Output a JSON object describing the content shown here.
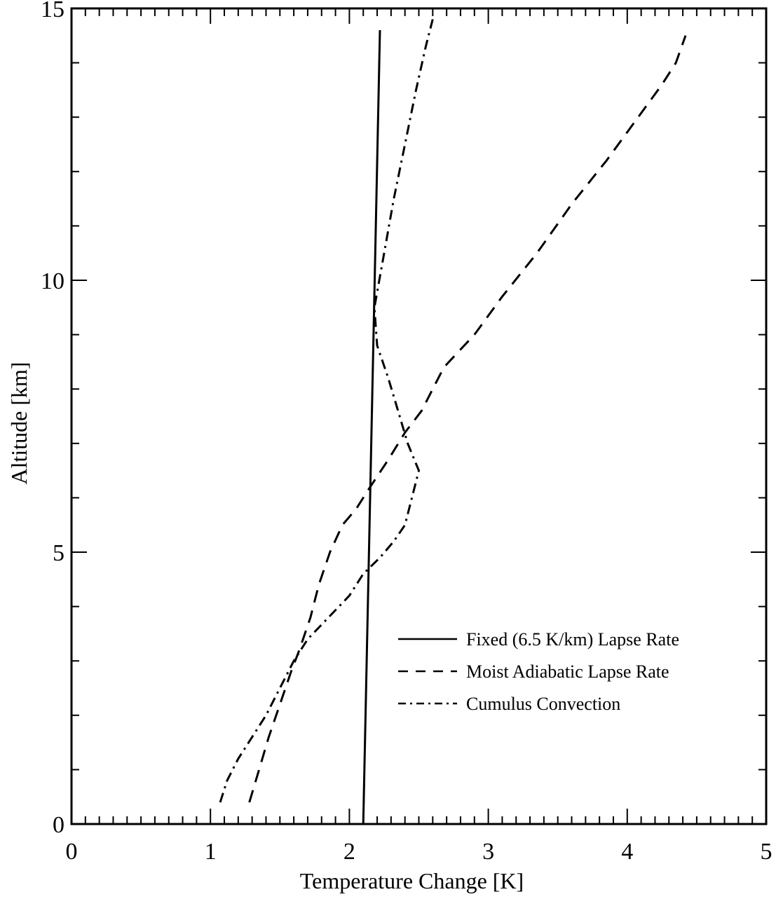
{
  "chart_data": {
    "type": "line",
    "title": "",
    "xlabel": "Temperature Change [K]",
    "ylabel": "Altitude [km]",
    "xlim": [
      0,
      5
    ],
    "ylim": [
      0,
      15
    ],
    "x_ticks": [
      "0",
      "1",
      "2",
      "3",
      "4",
      "5"
    ],
    "y_ticks": [
      "0",
      "5",
      "10",
      "15"
    ],
    "grid": false,
    "legend_position": "bottom-right",
    "series": [
      {
        "name": "Fixed (6.5 K/km) Lapse Rate",
        "style": "solid",
        "points": [
          [
            2.1,
            0
          ],
          [
            2.22,
            14.6
          ]
        ]
      },
      {
        "name": "Moist Adiabatic Lapse Rate",
        "style": "dashed",
        "points": [
          [
            1.28,
            0.4
          ],
          [
            1.35,
            1.0
          ],
          [
            1.42,
            1.6
          ],
          [
            1.5,
            2.2
          ],
          [
            1.58,
            2.8
          ],
          [
            1.64,
            3.2
          ],
          [
            1.72,
            3.8
          ],
          [
            1.78,
            4.4
          ],
          [
            1.86,
            5.0
          ],
          [
            1.95,
            5.5
          ],
          [
            2.05,
            5.8
          ],
          [
            2.15,
            6.2
          ],
          [
            2.28,
            6.7
          ],
          [
            2.4,
            7.2
          ],
          [
            2.52,
            7.6
          ],
          [
            2.6,
            8.0
          ],
          [
            2.68,
            8.4
          ],
          [
            2.9,
            9.0
          ],
          [
            3.1,
            9.7
          ],
          [
            3.35,
            10.5
          ],
          [
            3.6,
            11.4
          ],
          [
            3.85,
            12.2
          ],
          [
            4.05,
            12.9
          ],
          [
            4.25,
            13.6
          ],
          [
            4.35,
            14.0
          ],
          [
            4.42,
            14.5
          ]
        ]
      },
      {
        "name": "Cumulus Convection",
        "style": "dashdot",
        "points": [
          [
            1.07,
            0.4
          ],
          [
            1.12,
            0.8
          ],
          [
            1.2,
            1.2
          ],
          [
            1.3,
            1.6
          ],
          [
            1.4,
            2.0
          ],
          [
            1.52,
            2.6
          ],
          [
            1.6,
            3.0
          ],
          [
            1.7,
            3.4
          ],
          [
            1.85,
            3.8
          ],
          [
            2.0,
            4.2
          ],
          [
            2.1,
            4.6
          ],
          [
            2.22,
            4.9
          ],
          [
            2.32,
            5.2
          ],
          [
            2.4,
            5.5
          ],
          [
            2.45,
            6.0
          ],
          [
            2.5,
            6.5
          ],
          [
            2.42,
            7.0
          ],
          [
            2.35,
            7.6
          ],
          [
            2.28,
            8.2
          ],
          [
            2.2,
            8.8
          ],
          [
            2.18,
            9.5
          ],
          [
            2.25,
            10.5
          ],
          [
            2.32,
            11.5
          ],
          [
            2.4,
            12.5
          ],
          [
            2.48,
            13.5
          ],
          [
            2.55,
            14.3
          ],
          [
            2.6,
            14.8
          ]
        ]
      }
    ]
  }
}
